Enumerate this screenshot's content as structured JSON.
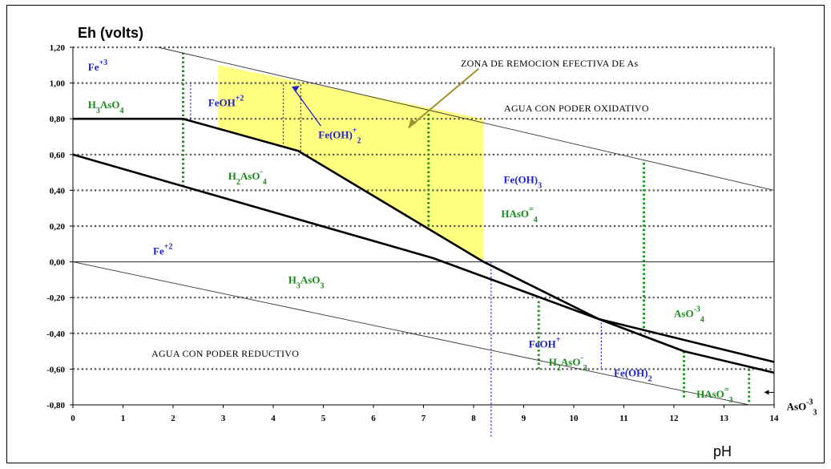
{
  "colors": {
    "blue_label": "#1f1fd0",
    "green_label": "#1a8a1a",
    "zone_fill": "#ffff80",
    "grid": "#555555",
    "green_dash": "#1a9a1a",
    "blue_dash": "#2a2ad0",
    "arrow": "#a09030"
  },
  "chart_data": {
    "type": "line",
    "ylabel": "Eh (volts)",
    "xlabel": "pH",
    "xlim": [
      0,
      14
    ],
    "ylim": [
      -0.8,
      1.2
    ],
    "x_ticks": [
      "0",
      "1",
      "2",
      "3",
      "4",
      "5",
      "6",
      "7",
      "8",
      "9",
      "10",
      "11",
      "12",
      "13",
      "14"
    ],
    "y_ticks": [
      {
        "v": 1.2,
        "t": "1,20"
      },
      {
        "v": 1.0,
        "t": "1,00"
      },
      {
        "v": 0.8,
        "t": "0,80"
      },
      {
        "v": 0.6,
        "t": "0,60"
      },
      {
        "v": 0.4,
        "t": "0,40"
      },
      {
        "v": 0.2,
        "t": "0,20"
      },
      {
        "v": 0.0,
        "t": "0,00"
      },
      {
        "v": -0.2,
        "t": "-0,20"
      },
      {
        "v": -0.4,
        "t": "-0,40"
      },
      {
        "v": -0.6,
        "t": "-0,60"
      },
      {
        "v": -0.8,
        "t": "-0,80"
      }
    ],
    "grid": "horizontal dotted",
    "water_lines": [
      {
        "id": "upper",
        "points": [
          [
            1.7,
            1.2
          ],
          [
            14,
            0.4
          ]
        ]
      },
      {
        "id": "lower",
        "points": [
          [
            0,
            0.0
          ],
          [
            13.5,
            -0.8
          ]
        ]
      }
    ],
    "boundaries": [
      {
        "id": "fe-species",
        "points": [
          [
            0,
            0.8
          ],
          [
            2.2,
            0.8
          ],
          [
            4.5,
            0.62
          ],
          [
            8.2,
            0.0
          ],
          [
            10.5,
            -0.32
          ],
          [
            12.2,
            -0.5
          ],
          [
            14,
            -0.62
          ]
        ]
      },
      {
        "id": "as-species",
        "points": [
          [
            0,
            0.6
          ],
          [
            7.2,
            0.02
          ],
          [
            10.5,
            -0.32
          ],
          [
            14,
            -0.56
          ]
        ]
      }
    ],
    "effective_zone": [
      [
        2.9,
        1.1
      ],
      [
        8.2,
        0.8
      ],
      [
        8.2,
        0.0
      ],
      [
        4.5,
        0.62
      ],
      [
        2.9,
        0.75
      ]
    ],
    "green_dividers": [
      {
        "x": 2.2,
        "y": [
          0.42,
          1.17
        ]
      },
      {
        "x": 7.1,
        "y": [
          0.2,
          0.83
        ]
      },
      {
        "x": 9.3,
        "y": [
          -0.22,
          -0.6
        ]
      },
      {
        "x": 11.4,
        "y": [
          -0.37,
          0.57
        ]
      },
      {
        "x": 12.2,
        "y": [
          -0.5,
          -0.76
        ]
      },
      {
        "x": 13.5,
        "y": [
          -0.6,
          -0.8
        ]
      }
    ],
    "blue_dividers": [
      {
        "x": 2.35,
        "y": [
          0.8,
          1.0
        ]
      },
      {
        "x": 4.2,
        "y": [
          0.66,
          1.0
        ]
      },
      {
        "x": 4.55,
        "y": [
          0.62,
          1.0
        ]
      },
      {
        "x": 8.35,
        "y": [
          0.0,
          -0.98
        ]
      },
      {
        "x": 10.55,
        "y": [
          -0.32,
          -0.6
        ]
      }
    ],
    "species_labels": [
      {
        "id": "fe3",
        "base": "Fe",
        "sup": "+3",
        "sub": "",
        "tail": "",
        "x": 0.3,
        "y": 1.07,
        "color": "blue"
      },
      {
        "id": "h3aso4",
        "base": "H",
        "sub": "3",
        "mid": "AsO",
        "sub2": "4",
        "sup": "",
        "x": 0.3,
        "y": 0.86,
        "color": "green"
      },
      {
        "id": "feoh2",
        "base": "FeOH",
        "sup": "+2",
        "sub": "",
        "tail": "",
        "x": 2.7,
        "y": 0.87,
        "color": "blue"
      },
      {
        "id": "feoh2p",
        "base": "Fe(OH)",
        "sub": "2",
        "sup": "+",
        "tail": "",
        "x": 4.9,
        "y": 0.69,
        "color": "blue"
      },
      {
        "id": "h2aso4",
        "base": "H",
        "sub": "2",
        "mid": "AsO",
        "sub2": "4",
        "sup": "-",
        "x": 3.1,
        "y": 0.46,
        "color": "green"
      },
      {
        "id": "feoh3",
        "base": "Fe(OH)",
        "sub": "3",
        "sup": "",
        "tail": "",
        "x": 8.6,
        "y": 0.44,
        "color": "blue"
      },
      {
        "id": "haso4",
        "base": "HAsO",
        "sub": "4",
        "sup": "=",
        "tail": "",
        "x": 8.55,
        "y": 0.25,
        "color": "green"
      },
      {
        "id": "fe2",
        "base": "Fe",
        "sup": "+2",
        "sub": "",
        "tail": "",
        "x": 1.6,
        "y": 0.04,
        "color": "blue"
      },
      {
        "id": "h3aso3",
        "base": "H",
        "sub": "3",
        "mid": "AsO",
        "sub2": "3",
        "sup": "",
        "x": 4.3,
        "y": -0.12,
        "color": "green"
      },
      {
        "id": "aso4",
        "base": "AsO",
        "sub": "4",
        "sup": "-3",
        "tail": "",
        "x": 12.0,
        "y": -0.31,
        "color": "green"
      },
      {
        "id": "feoh",
        "base": "FeOH",
        "sup": "+",
        "sub": "",
        "tail": "",
        "x": 9.1,
        "y": -0.48,
        "color": "blue"
      },
      {
        "id": "h2aso3",
        "base": "H",
        "sub": "2",
        "mid": "AsO",
        "sub2": "3",
        "sup": "-",
        "x": 9.5,
        "y": -0.58,
        "color": "green"
      },
      {
        "id": "feoh2n",
        "base": "Fe(OH)",
        "sub": "2",
        "sup": "",
        "tail": "",
        "x": 10.8,
        "y": -0.64,
        "color": "blue"
      },
      {
        "id": "haso3",
        "base": "HAsO",
        "sub": "3",
        "sup": "=",
        "tail": "",
        "x": 12.45,
        "y": -0.76,
        "color": "green"
      },
      {
        "id": "aso3",
        "base": "AsO",
        "sub": "3",
        "sup": "-3",
        "tail": "",
        "x": 14.25,
        "y": -0.83,
        "color": "black"
      }
    ],
    "annotations": {
      "zone_effective": "ZONA DE REMOCION EFECTIVA DE As",
      "oxidative": "AGUA CON  PODER OXIDATIVO",
      "reductive": "AGUA CON  PODER REDUCTIVO"
    }
  }
}
